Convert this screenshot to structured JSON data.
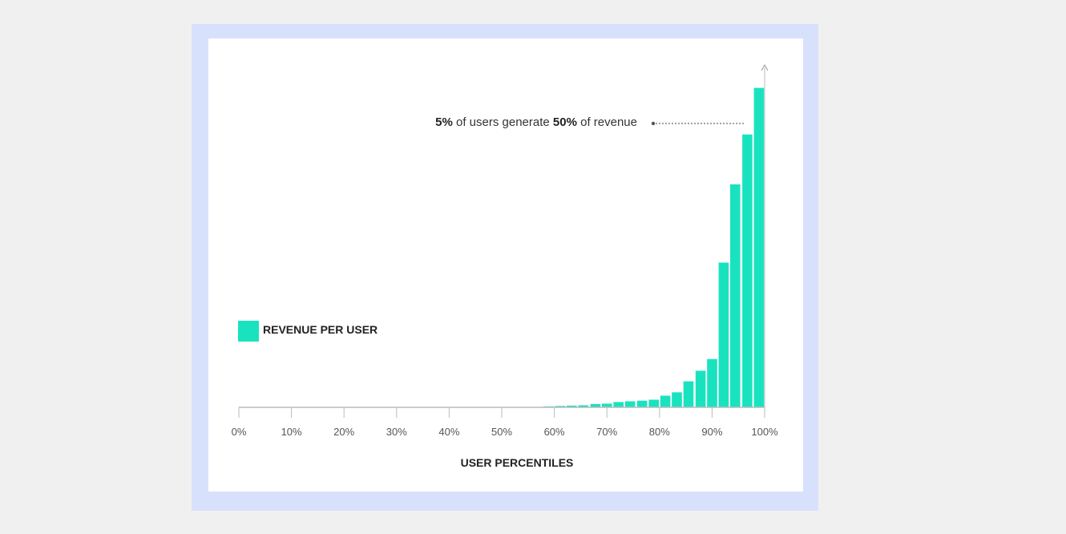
{
  "chart_data": {
    "type": "bar",
    "xlabel": "USER PERCENTILES",
    "ylabel": "",
    "xticks": [
      "0%",
      "10%",
      "20%",
      "30%",
      "40%",
      "50%",
      "60%",
      "70%",
      "80%",
      "90%",
      "100%"
    ],
    "x_range": [
      0,
      100
    ],
    "bin_width": 2.222,
    "legend": {
      "label": "REVENUE PER USER",
      "position": "left"
    },
    "series": [
      {
        "name": "REVENUE PER USER",
        "color": "#19e3bf",
        "x_start": [
          57.8,
          60.0,
          62.2,
          64.4,
          66.7,
          68.9,
          71.1,
          73.3,
          75.6,
          77.8,
          80.0,
          82.2,
          84.4,
          86.7,
          88.9,
          91.1,
          93.3,
          95.6,
          97.8
        ],
        "values": [
          0.3,
          0.4,
          0.5,
          0.6,
          1.0,
          1.1,
          1.6,
          1.8,
          2.0,
          2.3,
          3.5,
          4.5,
          7.8,
          11.0,
          14.5,
          43.5,
          67.0,
          82.0,
          96.0
        ]
      }
    ],
    "ylim": [
      0,
      100
    ],
    "grid": false,
    "annotation": {
      "part1_bold": "5%",
      "part2": " of users generate ",
      "part3_bold": "50%",
      "part4": " of revenue"
    }
  }
}
